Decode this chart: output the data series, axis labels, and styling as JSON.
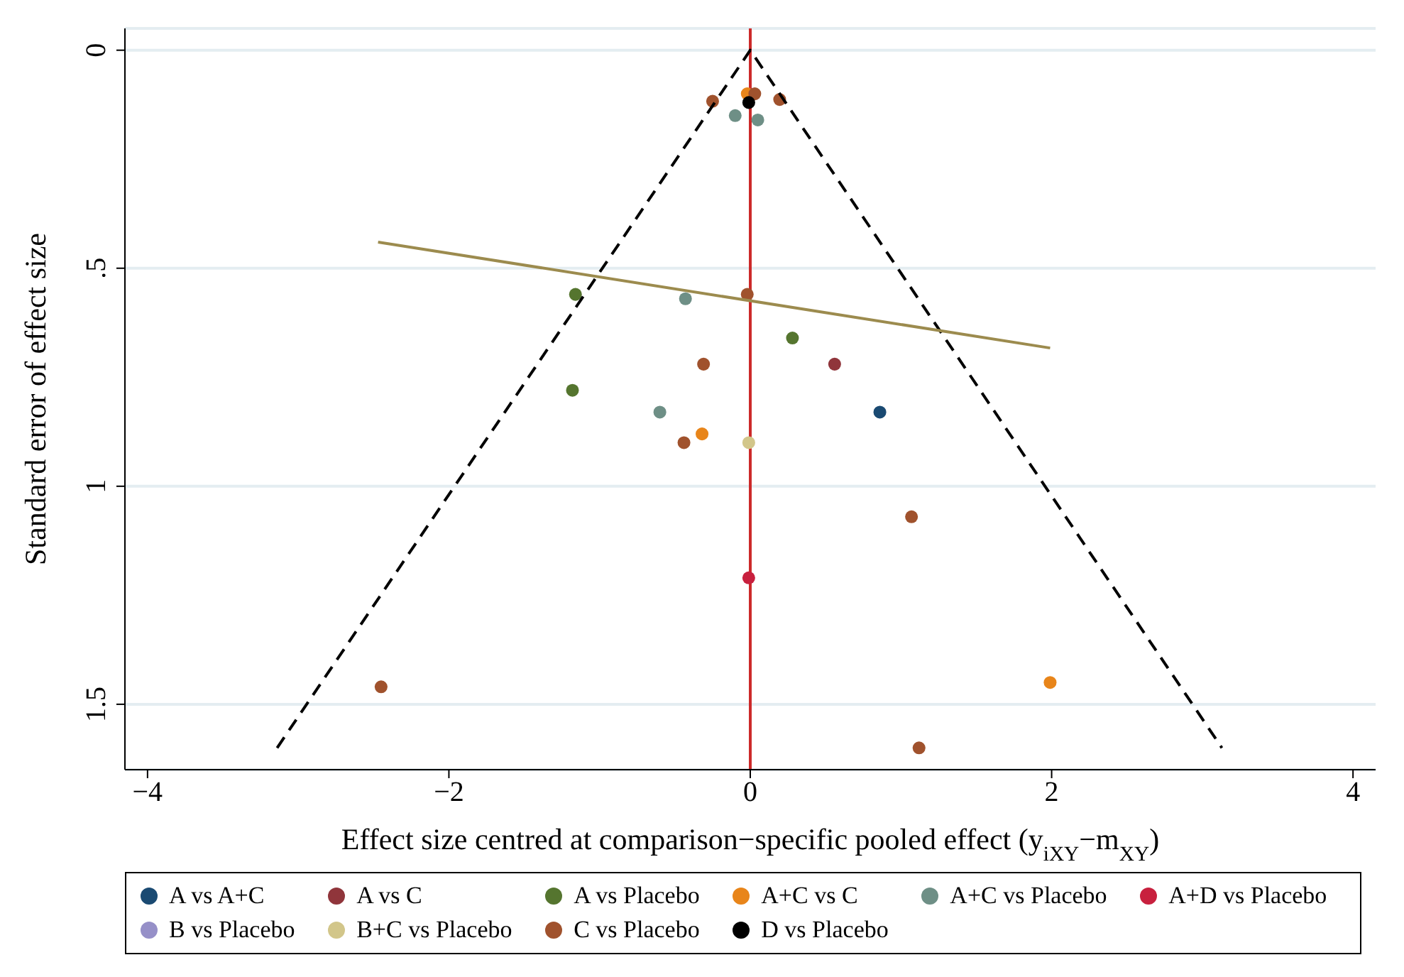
{
  "chart_data": {
    "type": "scatter",
    "xlabel": "Effect size centred at comparison−specific pooled effect (y$_{iXY}$−m$_{XY}$)",
    "ylabel": "Standard error of effect size",
    "xlim": [
      -4.15,
      4.15
    ],
    "xticks": [
      {
        "value": -4,
        "label": "−4"
      },
      {
        "value": -2,
        "label": "−2"
      },
      0,
      2,
      4
    ],
    "ylim": [
      1.65,
      -0.05
    ],
    "yticks": [
      0,
      {
        "value": 0.5,
        "label": ".5"
      },
      1,
      1.5
    ],
    "grid": "y",
    "legend": "bottom",
    "marker": "circle",
    "ref_lines": [
      {
        "axis": "x",
        "value": 0,
        "color": "#cc2a2a"
      }
    ],
    "series": [
      {
        "name": "A vs A+C",
        "color": "#1a4a72",
        "x": [
          0.86
        ],
        "values": [
          0.83
        ]
      },
      {
        "name": "A vs C",
        "color": "#90353b",
        "x": [
          0.56
        ],
        "values": [
          0.72
        ]
      },
      {
        "name": "A vs Placebo",
        "color": "#55752f",
        "x": [
          -1.16,
          0.28,
          -1.18
        ],
        "values": [
          0.56,
          0.66,
          0.78
        ]
      },
      {
        "name": "A+C vs C",
        "color": "#e8851a",
        "x": [
          -0.02,
          -0.32,
          1.99
        ],
        "values": [
          0.1,
          0.88,
          1.45
        ]
      },
      {
        "name": "A+C vs Placebo",
        "color": "#6e8f86",
        "x": [
          -0.1,
          0.05,
          -0.43,
          -0.6
        ],
        "values": [
          0.15,
          0.16,
          0.57,
          0.83
        ]
      },
      {
        "name": "A+D vs Placebo",
        "color": "#c8203e",
        "x": [
          -0.01
        ],
        "values": [
          1.21
        ]
      },
      {
        "name": "B vs Placebo",
        "color": "#9690c8"
      },
      {
        "name": "B+C vs Placebo",
        "color": "#d2c68a",
        "x": [
          -0.01
        ],
        "values": [
          0.9
        ]
      },
      {
        "name": "C vs Placebo",
        "color": "#a0522d",
        "x": [
          -0.25,
          0.195,
          0.03,
          -0.02,
          -0.31,
          -0.44,
          1.07,
          -2.45,
          1.12
        ],
        "values": [
          0.117,
          0.113,
          0.1,
          0.56,
          0.72,
          0.9,
          1.07,
          1.46,
          1.6
        ]
      },
      {
        "name": "D vs Placebo",
        "color": "#000000",
        "x": [
          -0.01
        ],
        "values": [
          0.12
        ]
      },
      {
        "type": "line",
        "color": "#000000",
        "line_style": "dashed",
        "marker": "none",
        "x": [
          -3.14,
          0,
          3.13
        ],
        "values": [
          1.6,
          0,
          1.6
        ]
      },
      {
        "type": "line",
        "color": "#9c8b4e",
        "line_style": "solid",
        "marker": "none",
        "x": [
          -2.47,
          1.99
        ],
        "values": [
          0.44,
          0.683
        ]
      }
    ]
  }
}
